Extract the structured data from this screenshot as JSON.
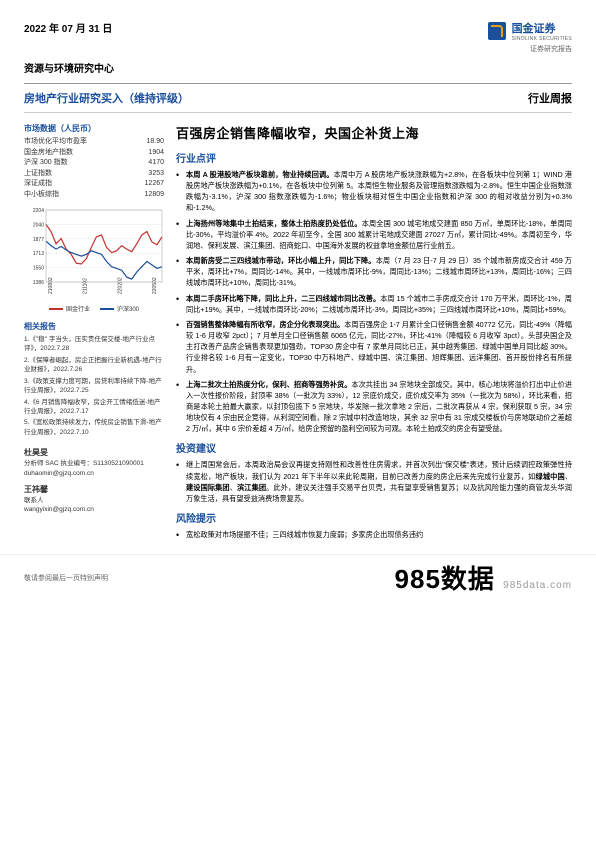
{
  "header": {
    "date": "2022 年 07 月 31 日",
    "company_cn": "国金证券",
    "company_en": "SINOLINK SECURITIES",
    "report_type": "证券研究报告",
    "research_center": "资源与环境研究中心",
    "title_left": "房地产行业研究买入（维持评级）",
    "title_right": "行业周报"
  },
  "sidebar": {
    "market_title": "市场数据（人民币）",
    "market_rows": [
      {
        "label": "市场优化平均市盈率",
        "value": "18.90"
      },
      {
        "label": "国金房地产指数",
        "value": "1904"
      },
      {
        "label": "沪深 300 指数",
        "value": "4170"
      },
      {
        "label": "上证指数",
        "value": "3253"
      },
      {
        "label": "深证成指",
        "value": "12267"
      },
      {
        "label": "中小板综指",
        "value": "12809"
      }
    ],
    "chart": {
      "y_ticks": [
        "2204",
        "2040",
        "1877",
        "1713",
        "1550",
        "1386"
      ],
      "x_ticks": [
        "210802",
        "211102",
        "220202",
        "220502"
      ],
      "ylim": [
        1386,
        2204
      ],
      "series": [
        {
          "name": "国金行业",
          "color": "#c4302b",
          "points": [
            2040,
            1960,
            1820,
            1880,
            1760,
            1700,
            1600,
            1590,
            1650,
            1780,
            1900,
            1920,
            1780,
            1720,
            1740,
            1800,
            1760,
            1730,
            1820,
            1920,
            1960,
            1840,
            1810,
            1900
          ]
        },
        {
          "name": "沪深300",
          "color": "#1a4f9c",
          "points": [
            1850,
            1800,
            1760,
            1790,
            1750,
            1720,
            1700,
            1680,
            1700,
            1740,
            1720,
            1700,
            1620,
            1560,
            1540,
            1520,
            1440,
            1420,
            1500,
            1560,
            1620,
            1580,
            1540,
            1560
          ]
        }
      ],
      "grid_color": "#ccc",
      "line_width": 1.2
    },
    "related_title": "相关报告",
    "related_reports": [
      "1.《\"稳\" 字当头，压实责任保交楼-地产行业点评》，2022.7.28",
      "2.《保障者崛起，房企正把握行业新机遇-地产行业财报》，2022.7.26",
      "3.《政策支撑力度可期，房贷利率持续下降-地产行业周报》，2022.7.25",
      "4.《6 月销售降幅收窄，房企开工情绪低迷-地产行业周报》，2022.7.17",
      "5.《宽松政策持续发力，传统房企销售下滑-地产行业周报》，2022.7.10"
    ],
    "authors": [
      {
        "name": "杜昊旻",
        "role": "分析师 SAC 执业编号：S1130521090001",
        "email": "duhaomin@gjzq.com.cn"
      },
      {
        "name": "王祎馨",
        "role": "联系人",
        "email": "wangyixin@gjzq.com.cn"
      }
    ]
  },
  "main": {
    "title": "百强房企销售降幅收窄，央国企补货上海",
    "sections": [
      {
        "head": "行业点评",
        "bullets": [
          "<b class='inline'>本周 A 股港股地产板块靠前，物业持续回调。</b>本周中万 A 股房地产板块涨跌幅为+2.8%，在各板块中位列第 1；WIND 港股房地产板块涨跌幅为+0.1%，在各板块中位列第 5。本周恒生物业服务及管理指数涨跌幅为-2.8%。恒生中国企业指数涨跌幅为-3.1%，沪深 300 指数涨跌幅为-1.6%；物业板块相对恒生中国企业指数和沪深 300 的相对收益分别为+0.3%和-1.2%。",
          "<b class='inline'>上海扬州等地集中土拍结束，整体土拍热度扔处低位。</b>本周全国 300 城宅地成交建面 850 万㎡，单周环比-18%，单周同比-30%，平均溢价率 4%。2022 年初至今，全国 300 城累计宅地成交建面 27027 万㎡，累计同比-49%。本周初至今，华润地、保利发展、滨江集团、招商蛇口、中国海外发展的权益拿地金额位居行业前五。",
          "<b class='inline'>本周新房受二三四线城市带动，环比小幅上升，同比下降。</b>本周（7 月 23 日-7 月 29 日）35 个城市新房成交合计 459 万平米，周环比+7%，周同比-14%。其中，一线城市周环比-9%，周同比-13%；二线城市周环比+13%，周同比-16%；三四线城市周环比+10%，周同比-31%。",
          "<b class='inline'>本周二手房环比略下降，同比上升，二三四线城市同比改善。</b>本周 15 个城市二手房成交合计 170 万平米，周环比-1%，周同比+19%。其中，一线城市周环比-20%；二线城市周环比-3%，周同比+35%；三四线城市周环比+10%，周同比+59%。",
          "<b class='inline'>百强销售整体降幅有所收窄，房企分化表现突出。</b>本周百强房企 1-7 月累计全口径销售金额 40772 亿元，同比-49%（降幅较 1-6 月收窄 2pct）；7 月单月全口径销售额 6065 亿元，同比-27%，环比-41%（降幅较 6 月收窄 3pct）。头部央国企及主打改善产品房企销售表现更加强劲，TOP30 房企中有 7 家单月同比已正，其中越秀集团、绿城中国单月同比超 30%。行业排名较 1-6 月有一定变化，TOP30 中万科地产、绿城中国、滨江集团、旭辉集团、远洋集团、首开股份排名有所提升。",
          "<b class='inline'>上海二批次土拍热度分化，保利、招商等强势补货。</b>本次共挂出 34 宗地块全部成交。其中，核心地块将溢价打出中止价进入一次性报价阶段，封顶率 38%（一批次为 33%），12 宗底价成交，底价成交率为 35%（一批次为 58%），环比来看，招商是本轮土拍最大赢家，以封顶包揽下 5 宗地块，华发除一批次拿地 2 宗后，二批次再获从 4 宗，保利获取 5 宗，34 宗地块仅有 4 宗由民企竞得，从利润空间看，除 2 宗城中村改造地块，其余 32 宗中有 31 宗成交楼板价与房地联动价之差超 2 万/㎡，其中 6 宗价差超 4 万/㎡，给房企预留的盈利空间较为可观。本轮土拍成交的房企有望受益。"
        ]
      },
      {
        "head": "投资建议",
        "bullets": [
          "继上周国常会后，本周政治局会议再提支持刚性和改善性住房需求，并首次列出\"保交楼\"表述，预计后续调控政策弹性持续宽松，地产板块，我们认为 2021 年下半年以来此轮周期，目前已改善力度的房企后来先完成行业复苏，如<b class='inline'>绿城中国</b>、<b class='inline'>建设国际集团</b>、<b class='inline'>滨江集团</b>。此外，建议关注强手交易平台贝壳，共有望享受销售复苏；以及抗风险能力强的商管龙头华润万象生活，具有望受益消费场景复苏。"
        ]
      },
      {
        "head": "风险提示",
        "bullets": [
          "宽松政策对市场提振不佳；三四线城市恢复力度弱；多家房企出现债务违约"
        ]
      }
    ]
  },
  "footer": {
    "disclaimer": "敬请参阅最后一页特别声明",
    "brand": "985数据",
    "url": "985data.com"
  },
  "colors": {
    "brand_blue": "#1a4f9c",
    "accent_gold": "#e6a01c",
    "series_red": "#c4302b"
  }
}
